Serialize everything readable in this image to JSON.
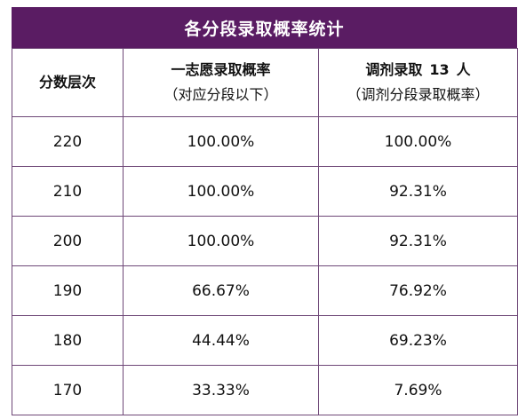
{
  "title": "各分段录取概率统计",
  "headers": {
    "col1": "分数层次",
    "col2_main": "一志愿录取概率",
    "col2_sub": "（对应分段以下）",
    "col3_main_prefix": "调剂录取",
    "col3_main_count": "13",
    "col3_main_suffix": "人",
    "col3_sub": "（调剂分段录取概率）"
  },
  "rows": [
    {
      "score": "220",
      "first_choice": "100.00%",
      "adjust": "100.00%"
    },
    {
      "score": "210",
      "first_choice": "100.00%",
      "adjust": "92.31%"
    },
    {
      "score": "200",
      "first_choice": "100.00%",
      "adjust": "92.31%"
    },
    {
      "score": "190",
      "first_choice": "66.67%",
      "adjust": "76.92%"
    },
    {
      "score": "180",
      "first_choice": "44.44%",
      "adjust": "69.23%"
    },
    {
      "score": "170",
      "first_choice": "33.33%",
      "adjust": "7.69%"
    }
  ],
  "colors": {
    "header_bg": "#5a1c63",
    "border": "#6e4777"
  }
}
